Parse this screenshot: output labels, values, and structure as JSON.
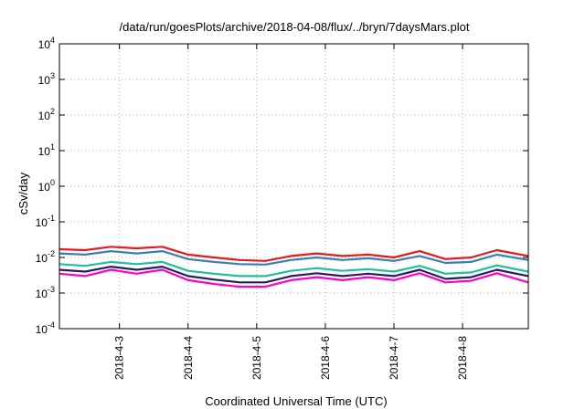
{
  "chart_data": {
    "type": "line",
    "title": "/data/run/goesPlots/archive/2018-04-08/flux/../bryn/7daysMars.plot",
    "xlabel": "Coordinated Universal Time (UTC)",
    "ylabel": "cSv/day",
    "yscale": "log",
    "ylim": [
      0.0001,
      10000
    ],
    "xlim": [
      "2018-04-02 03:00",
      "2018-04-08 23:00"
    ],
    "grid": true,
    "y_ticks": [
      {
        "value": 0.0001,
        "base": "10",
        "exp": "-4"
      },
      {
        "value": 0.001,
        "base": "10",
        "exp": "-3"
      },
      {
        "value": 0.01,
        "base": "10",
        "exp": "-2"
      },
      {
        "value": 0.1,
        "base": "10",
        "exp": "-1"
      },
      {
        "value": 1,
        "base": "10",
        "exp": "0"
      },
      {
        "value": 10,
        "base": "10",
        "exp": "1"
      },
      {
        "value": 100,
        "base": "10",
        "exp": "2"
      },
      {
        "value": 1000,
        "base": "10",
        "exp": "3"
      },
      {
        "value": 10000,
        "base": "10",
        "exp": "4"
      }
    ],
    "x_ticks": [
      {
        "label": "2018-4-3",
        "date": "2018-04-03 00:00"
      },
      {
        "label": "2018-4-4",
        "date": "2018-04-04 00:00"
      },
      {
        "label": "2018-4-5",
        "date": "2018-04-05 00:00"
      },
      {
        "label": "2018-4-6",
        "date": "2018-04-06 00:00"
      },
      {
        "label": "2018-4-7",
        "date": "2018-04-07 00:00"
      },
      {
        "label": "2018-4-8",
        "date": "2018-04-08 00:00"
      }
    ],
    "x": [
      "2018-04-02 03:00",
      "2018-04-02 12:00",
      "2018-04-02 21:00",
      "2018-04-03 06:00",
      "2018-04-03 15:00",
      "2018-04-04 00:00",
      "2018-04-04 09:00",
      "2018-04-04 18:00",
      "2018-04-05 03:00",
      "2018-04-05 12:00",
      "2018-04-05 21:00",
      "2018-04-06 06:00",
      "2018-04-06 15:00",
      "2018-04-07 00:00",
      "2018-04-07 09:00",
      "2018-04-07 18:00",
      "2018-04-08 03:00",
      "2018-04-08 12:00",
      "2018-04-08 23:00"
    ],
    "series": [
      {
        "color": "#e41a1c",
        "values": [
          0.017,
          0.016,
          0.02,
          0.018,
          0.02,
          0.012,
          0.01,
          0.0085,
          0.008,
          0.011,
          0.013,
          0.011,
          0.012,
          0.01,
          0.015,
          0.009,
          0.01,
          0.016,
          0.011
        ]
      },
      {
        "color": "#377eb8",
        "values": [
          0.013,
          0.012,
          0.015,
          0.013,
          0.015,
          0.009,
          0.0075,
          0.0065,
          0.0063,
          0.0085,
          0.01,
          0.0085,
          0.0095,
          0.008,
          0.011,
          0.007,
          0.0075,
          0.012,
          0.0085
        ]
      },
      {
        "color": "#1fbf9a",
        "values": [
          0.0065,
          0.0058,
          0.0075,
          0.0065,
          0.0075,
          0.0042,
          0.0035,
          0.003,
          0.003,
          0.0042,
          0.005,
          0.0042,
          0.0047,
          0.004,
          0.0058,
          0.0035,
          0.0038,
          0.006,
          0.004
        ]
      },
      {
        "color": "#2e1a5e",
        "values": [
          0.0045,
          0.004,
          0.0055,
          0.0045,
          0.0055,
          0.003,
          0.0024,
          0.002,
          0.002,
          0.003,
          0.0036,
          0.003,
          0.0035,
          0.003,
          0.0045,
          0.0025,
          0.0028,
          0.0045,
          0.003
        ]
      },
      {
        "color": "#ff00cc",
        "values": [
          0.0035,
          0.003,
          0.0045,
          0.0035,
          0.0045,
          0.0023,
          0.0018,
          0.0015,
          0.0015,
          0.0023,
          0.0028,
          0.0023,
          0.0028,
          0.0023,
          0.0036,
          0.002,
          0.0022,
          0.0036,
          0.002
        ]
      }
    ]
  }
}
